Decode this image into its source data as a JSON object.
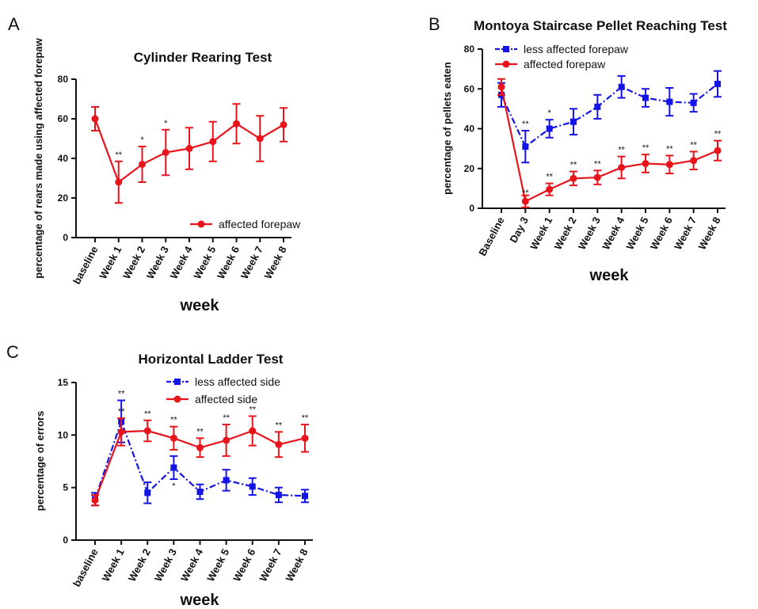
{
  "chart_data": [
    {
      "panel": "A",
      "type": "line",
      "title": "Cylinder Rearing Test",
      "xlabel": "week",
      "ylabel": "percentage of rears made using affected forepaw",
      "categories": [
        "baseline",
        "Week 1",
        "Week 2",
        "Week 3",
        "Week 4",
        "Week 5",
        "Week 6",
        "Week 7",
        "Week 8"
      ],
      "ylim": [
        0,
        80
      ],
      "yticks": [
        "0",
        "20",
        "40",
        "60",
        "80"
      ],
      "legend_position": "bottom-right",
      "series": [
        {
          "name": "affected forepaw",
          "color": "#e8141b",
          "marker": "circle",
          "line_style": "solid",
          "values": [
            60,
            28,
            37,
            43,
            45,
            48.5,
            57.5,
            50,
            57
          ],
          "errors": [
            6,
            10.5,
            9,
            11.5,
            10.5,
            10,
            10,
            11.5,
            8.5
          ],
          "annotations": [
            "",
            "**",
            "*",
            "*",
            "",
            "",
            "",
            "",
            ""
          ]
        }
      ]
    },
    {
      "panel": "B",
      "type": "line",
      "title": "Montoya Staircase Pellet Reaching Test",
      "xlabel": "week",
      "ylabel": "percentage of pellets eaten",
      "categories": [
        "Baseline",
        "Day 3",
        "Week 1",
        "Week 2",
        "Week 3",
        "Week 4",
        "Week 5",
        "Week 6",
        "Week 7",
        "Week 8"
      ],
      "ylim": [
        0,
        80
      ],
      "yticks": [
        "0",
        "20",
        "40",
        "60",
        "80"
      ],
      "legend_position": "top-left",
      "series": [
        {
          "name": "less affected forepaw",
          "color": "#1414e6",
          "marker": "square",
          "line_style": "dash-dot",
          "values": [
            57,
            31,
            40,
            43.5,
            51,
            61,
            55.5,
            53.5,
            53,
            62.5
          ],
          "errors": [
            6,
            8,
            4.5,
            6.5,
            6,
            5.5,
            4.5,
            7,
            4.5,
            6.5
          ],
          "annotations": [
            "",
            "**",
            "*",
            "",
            "",
            "",
            "",
            "",
            "",
            ""
          ]
        },
        {
          "name": "affected forepaw",
          "color": "#e8141b",
          "marker": "circle",
          "line_style": "solid",
          "values": [
            61,
            3.5,
            9.5,
            15,
            15.5,
            20.5,
            22.5,
            22,
            24,
            29
          ],
          "errors": [
            4,
            3,
            3,
            3.5,
            3.5,
            5.5,
            4.5,
            4.5,
            4.5,
            5
          ],
          "annotations": [
            "",
            "**",
            "**",
            "**",
            "**",
            "**",
            "**",
            "**",
            "**",
            "**"
          ]
        }
      ]
    },
    {
      "panel": "C",
      "type": "line",
      "title": "Horizontal Ladder Test",
      "xlabel": "week",
      "ylabel": "percentage of errors",
      "categories": [
        "baseline",
        "Week 1",
        "Week 2",
        "Week 3",
        "Week 4",
        "Week 5",
        "Week 6",
        "Week 7",
        "Week 8"
      ],
      "ylim": [
        0,
        15
      ],
      "yticks": [
        "0",
        "5",
        "10",
        "15"
      ],
      "legend_position": "top-center",
      "series": [
        {
          "name": "less affected side",
          "color": "#1414e6",
          "marker": "square",
          "line_style": "dash-dot",
          "values": [
            3.9,
            11.3,
            4.5,
            6.9,
            4.6,
            5.7,
            5.1,
            4.3,
            4.2
          ],
          "errors": [
            0.6,
            2.0,
            1.0,
            1.1,
            0.7,
            1.0,
            0.8,
            0.7,
            0.6
          ],
          "annotations": [
            "",
            "**",
            "",
            "*",
            "",
            "",
            "",
            "",
            ""
          ]
        },
        {
          "name": "affected side",
          "color": "#e8141b",
          "marker": "circle",
          "line_style": "solid",
          "values": [
            3.8,
            10.3,
            10.4,
            9.7,
            8.8,
            9.5,
            10.4,
            9.1,
            9.7
          ],
          "errors": [
            0.5,
            1.3,
            1.0,
            1.1,
            0.9,
            1.5,
            1.4,
            1.2,
            1.3
          ],
          "annotations": [
            "",
            "**",
            "**",
            "**",
            "**",
            "**",
            "**",
            "**",
            "**"
          ]
        }
      ]
    }
  ]
}
